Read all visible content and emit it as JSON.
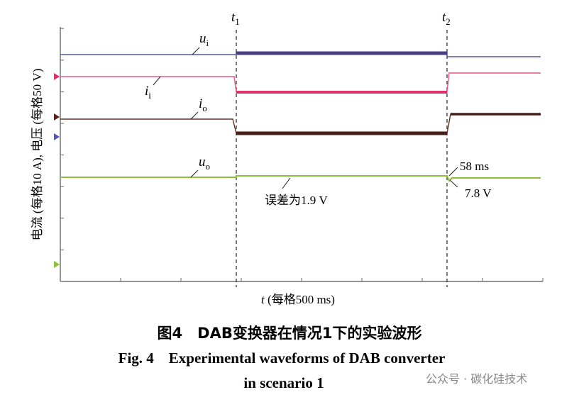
{
  "figure": {
    "y_axis_label": "电流 (每格10 A), 电压 (每格50 V)",
    "x_axis_label": {
      "symbol": "t",
      "text": " (每格500 ms)"
    },
    "markers": [
      {
        "symbol": "t",
        "subscript": "1"
      },
      {
        "symbol": "t",
        "subscript": "2"
      }
    ],
    "trace_labels": [
      {
        "symbol": "u",
        "subscript": "i"
      },
      {
        "symbol": "i",
        "subscript": "i"
      },
      {
        "symbol": "i",
        "subscript": "o"
      },
      {
        "symbol": "u",
        "subscript": "o"
      }
    ],
    "annotations": [
      "58 ms",
      "7.8 V",
      "误差为1.9 V"
    ]
  },
  "caption": {
    "chinese": "图4　DAB变换器在情况1下的实验波形",
    "english_lines": [
      "Fig. 4　Experimental waveforms of DAB converter",
      "in scenario 1"
    ]
  },
  "watermark": "公众号 · 碳化硅技术"
}
